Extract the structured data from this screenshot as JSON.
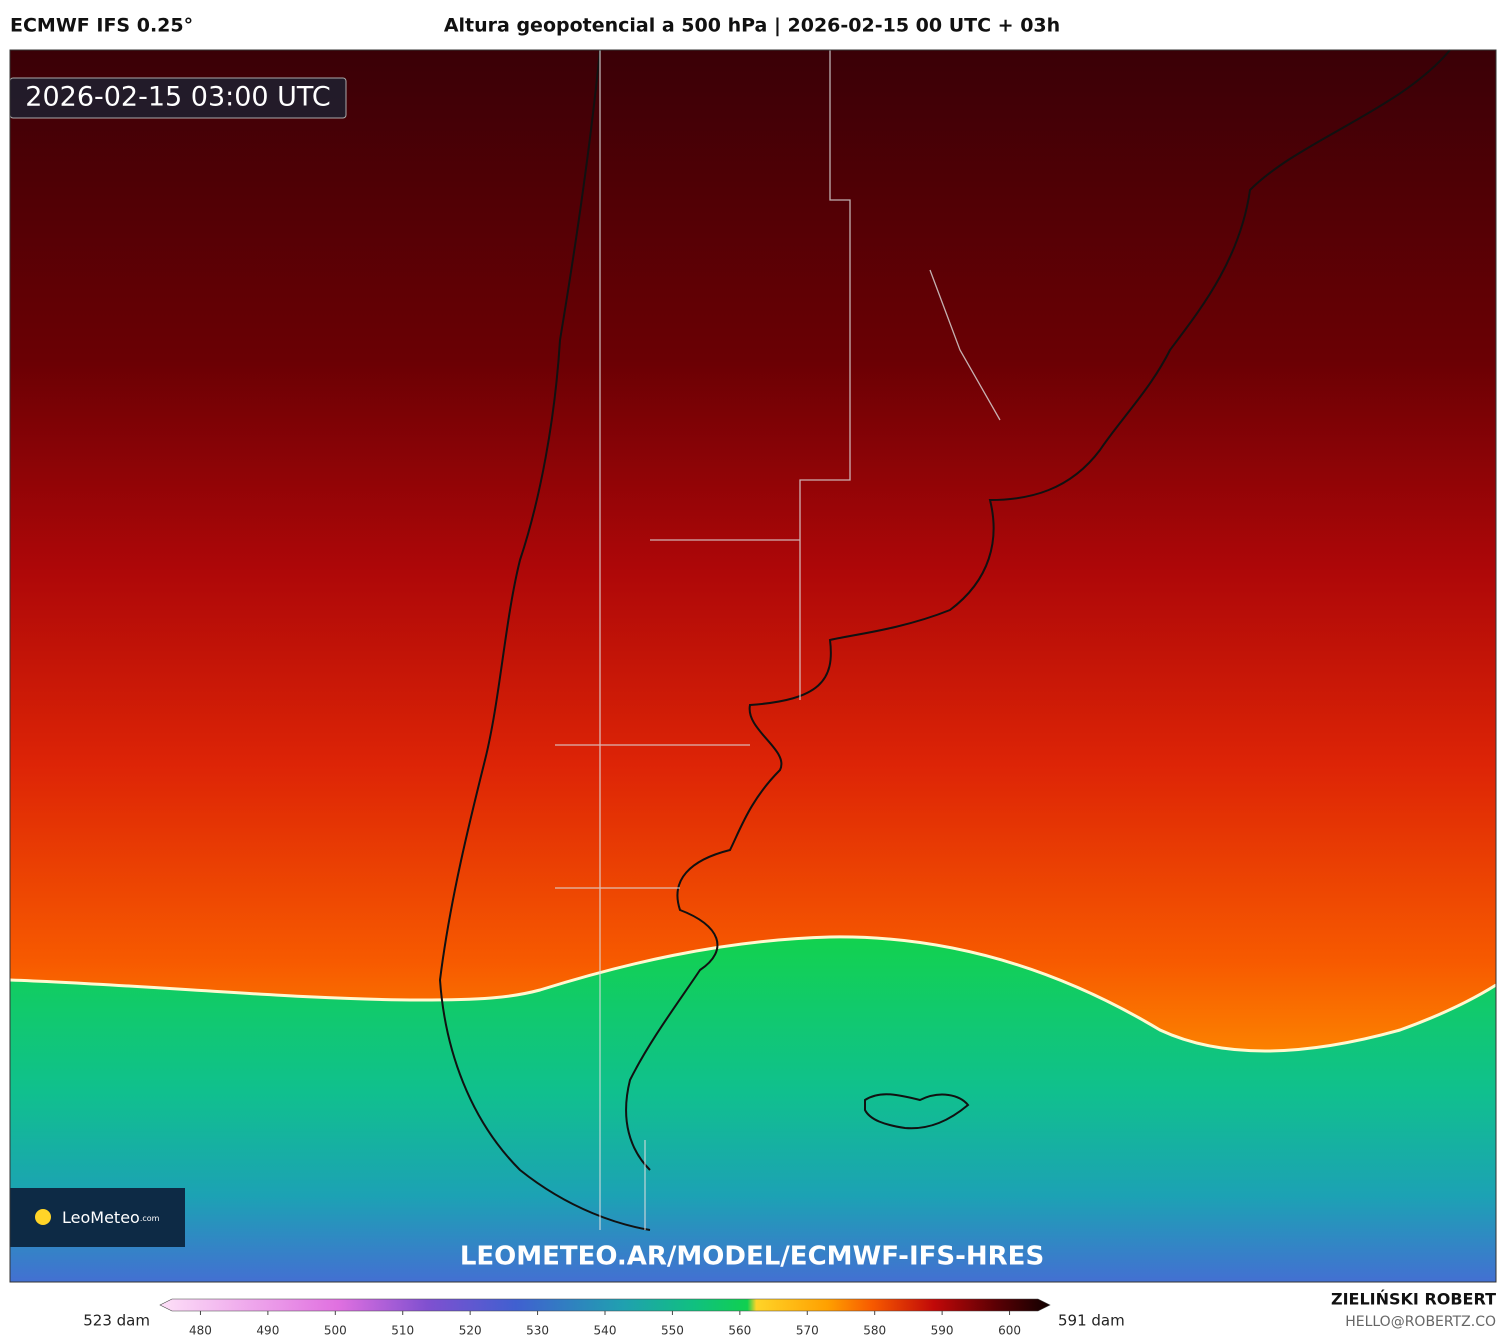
{
  "header": {
    "model": "ECMWF IFS 0.25°",
    "title": "Altura geopotencial a 500 hPa | 2026-02-15 00 UTC + 03h"
  },
  "map": {
    "timestamp": "2026-02-15 03:00 UTC",
    "logo": "LeoMeteo",
    "logo_suffix": ".com",
    "url": "LEOMETEO.AR/MODEL/ECMWF-IFS-HRES"
  },
  "colorbar": {
    "min_label": "523 dam",
    "max_label": "591 dam",
    "lim": [
      474,
      606
    ],
    "ticks": [
      480,
      490,
      500,
      510,
      520,
      530,
      540,
      550,
      560,
      570,
      580,
      590,
      600
    ]
  },
  "footer": {
    "author": "ZIELIŃSKI ROBERT",
    "email": "HELLO@ROBERTZ.CO"
  }
}
